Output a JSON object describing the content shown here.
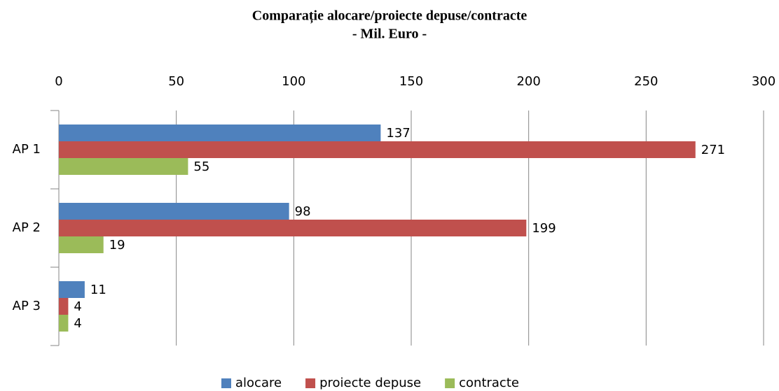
{
  "chart_data": {
    "type": "bar",
    "orientation": "horizontal",
    "title": "Comparație alocare/proiecte depuse/contracte",
    "subtitle": "- Mil. Euro -",
    "categories": [
      "AP 1",
      "AP 2",
      "AP 3"
    ],
    "series": [
      {
        "name": "alocare",
        "color": "#4f81bd",
        "values": [
          137,
          98,
          11
        ]
      },
      {
        "name": "proiecte depuse",
        "color": "#c0504d",
        "values": [
          271,
          199,
          4
        ]
      },
      {
        "name": "contracte",
        "color": "#9bbb59",
        "values": [
          55,
          19,
          4
        ]
      }
    ],
    "xlim": [
      0,
      300
    ],
    "xticks": [
      0,
      50,
      100,
      150,
      200,
      250,
      300
    ],
    "grid": true,
    "legend": "bottom"
  }
}
